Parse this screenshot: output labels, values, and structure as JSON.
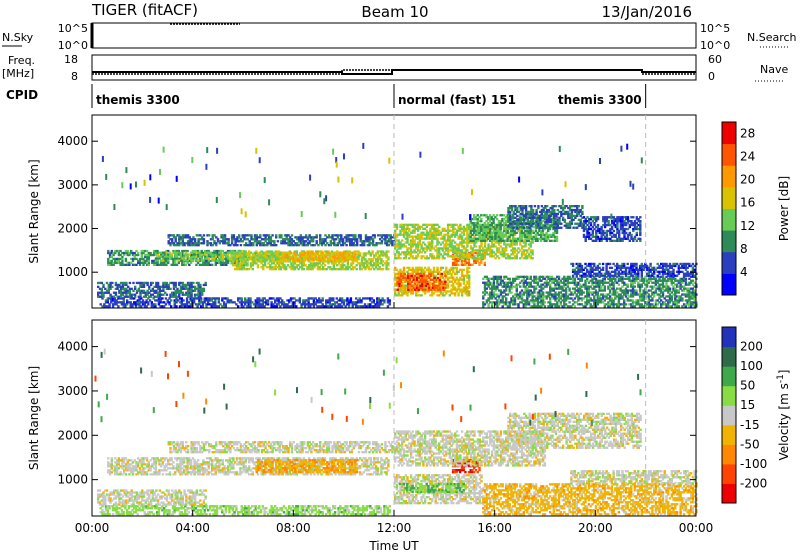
{
  "header": {
    "station": "TIGER (fitACF)",
    "beam": "Beam 10",
    "date": "13/Jan/2016"
  },
  "top_panels": {
    "nsky_label": "N.Sky",
    "nsky_ticks": [
      "10^5",
      "10^0"
    ],
    "nsearch_label": "N.Search",
    "freq_label_line1": "Freq.",
    "freq_label_line2": "[MHz]",
    "freq_ticks": [
      "18",
      "8"
    ],
    "nave_ticks": [
      "60",
      "0"
    ],
    "nave_label": "Nave",
    "cpid_label": "CPID",
    "cpid_segments": [
      {
        "name": "themis 3300",
        "start": 0,
        "end": 12
      },
      {
        "name": "normal (fast) 151",
        "start": 12,
        "end": 22
      },
      {
        "name": "themis 3300",
        "start": 22,
        "end": 24
      }
    ]
  },
  "chart_data": [
    {
      "type": "heatmap",
      "title": "",
      "xlabel": "",
      "ylabel": "Slant Range [km]",
      "xlim": [
        0,
        24
      ],
      "ylim": [
        180,
        4600
      ],
      "x_tick_values": [
        0,
        4,
        8,
        12,
        16,
        20,
        24
      ],
      "y_ticks": [
        1000,
        2000,
        3000,
        4000
      ],
      "colorbar": {
        "label": "Power [dB]",
        "ticks": [
          4,
          8,
          12,
          16,
          20,
          24,
          28
        ],
        "range": [
          0,
          30
        ],
        "colors": [
          "#0000ff",
          "#2a3fbf",
          "#2e8b57",
          "#66cc55",
          "#d9c200",
          "#ff9900",
          "#ff5500",
          "#ee0000"
        ]
      },
      "regions": [
        {
          "x": [
            0.3,
            11.8
          ],
          "y": [
            200,
            420
          ],
          "value": 6
        },
        {
          "x": [
            0.2,
            4.5
          ],
          "y": [
            420,
            780
          ],
          "value": 8
        },
        {
          "x": [
            0.6,
            6.0
          ],
          "y": [
            1150,
            1500
          ],
          "value": 10
        },
        {
          "x": [
            2.5,
            7.5
          ],
          "y": [
            1250,
            1450
          ],
          "value": 14
        },
        {
          "x": [
            5.5,
            11.8
          ],
          "y": [
            1050,
            1500
          ],
          "value": 16
        },
        {
          "x": [
            7.5,
            10.5
          ],
          "y": [
            1250,
            1450
          ],
          "value": 20
        },
        {
          "x": [
            3.0,
            12.0
          ],
          "y": [
            1600,
            1850
          ],
          "value": 8
        },
        {
          "x": [
            12.0,
            15.0
          ],
          "y": [
            450,
            1100
          ],
          "value": 18
        },
        {
          "x": [
            12.1,
            14.0
          ],
          "y": [
            580,
            950
          ],
          "value": 26
        },
        {
          "x": [
            14.3,
            15.6
          ],
          "y": [
            1150,
            1450
          ],
          "value": 24
        },
        {
          "x": [
            12.0,
            17.5
          ],
          "y": [
            1300,
            2100
          ],
          "value": 16
        },
        {
          "x": [
            15.0,
            18.5
          ],
          "y": [
            1700,
            2300
          ],
          "value": 12
        },
        {
          "x": [
            16.5,
            19.5
          ],
          "y": [
            2000,
            2500
          ],
          "value": 8
        },
        {
          "x": [
            19.5,
            21.8
          ],
          "y": [
            1700,
            2250
          ],
          "value": 6
        },
        {
          "x": [
            15.5,
            24.0
          ],
          "y": [
            200,
            900
          ],
          "value": 10
        },
        {
          "x": [
            19.0,
            24.0
          ],
          "y": [
            900,
            1200
          ],
          "value": 6
        }
      ]
    },
    {
      "type": "heatmap",
      "title": "",
      "xlabel": "Time UT",
      "ylabel": "Slant Range [km]",
      "xlim": [
        0,
        24
      ],
      "ylim": [
        180,
        4600
      ],
      "x_ticks": [
        "00:00",
        "04:00",
        "08:00",
        "12:00",
        "16:00",
        "20:00",
        "00:00"
      ],
      "x_tick_values": [
        0,
        4,
        8,
        12,
        16,
        20,
        24
      ],
      "y_ticks": [
        1000,
        2000,
        3000,
        4000
      ],
      "colorbar": {
        "label": "Velocity [m s^-1]",
        "ticks": [
          200,
          100,
          50,
          15,
          -15,
          -50,
          -100,
          -200
        ],
        "colors": [
          "#2233bb",
          "#2e6b4a",
          "#3ea84a",
          "#88dd44",
          "#c8c8c8",
          "#f0b300",
          "#ff8800",
          "#ff4400",
          "#ee0000"
        ]
      },
      "regions": [
        {
          "x": [
            0.3,
            11.8
          ],
          "y": [
            200,
            420
          ],
          "value": 20
        },
        {
          "x": [
            0.2,
            4.5
          ],
          "y": [
            420,
            780
          ],
          "value": 0
        },
        {
          "x": [
            0.6,
            11.8
          ],
          "y": [
            1100,
            1500
          ],
          "value": 0
        },
        {
          "x": [
            6.5,
            10.5
          ],
          "y": [
            1150,
            1450
          ],
          "value": -30
        },
        {
          "x": [
            3.0,
            12.0
          ],
          "y": [
            1600,
            1850
          ],
          "value": 0
        },
        {
          "x": [
            12.0,
            15.5
          ],
          "y": [
            450,
            1100
          ],
          "value": 0
        },
        {
          "x": [
            12.2,
            14.8
          ],
          "y": [
            700,
            900
          ],
          "value": 30
        },
        {
          "x": [
            14.3,
            15.4
          ],
          "y": [
            1150,
            1450
          ],
          "value": -150
        },
        {
          "x": [
            12.0,
            18.0
          ],
          "y": [
            1300,
            2100
          ],
          "value": 0
        },
        {
          "x": [
            16.5,
            21.8
          ],
          "y": [
            1700,
            2500
          ],
          "value": 0
        },
        {
          "x": [
            15.5,
            24.0
          ],
          "y": [
            200,
            900
          ],
          "value": -20
        },
        {
          "x": [
            19.0,
            24.0
          ],
          "y": [
            900,
            1200
          ],
          "value": 0
        }
      ]
    }
  ]
}
